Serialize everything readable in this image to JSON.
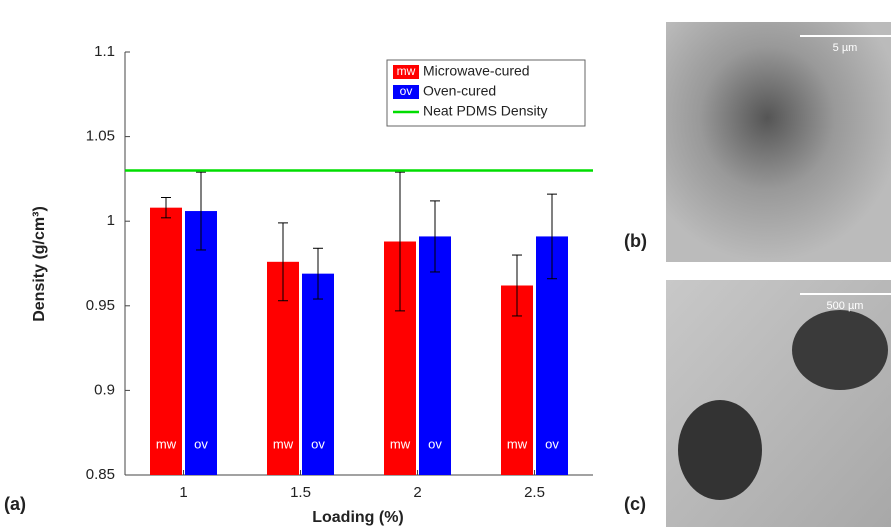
{
  "chart_data": {
    "type": "bar",
    "panel_label": "(a)",
    "xlabel": "Loading (%)",
    "ylabel": "Density (g/cm³)",
    "categories": [
      "1",
      "1.5",
      "2",
      "2.5"
    ],
    "series": [
      {
        "name": "Microwave-cured",
        "tag": "mw",
        "color": "#ff0000",
        "values": [
          1.008,
          0.976,
          0.988,
          0.962
        ],
        "errors": [
          0.006,
          0.023,
          0.041,
          0.018
        ]
      },
      {
        "name": "Oven-cured",
        "tag": "ov",
        "color": "#0000ff",
        "values": [
          1.006,
          0.969,
          0.991,
          0.991
        ],
        "errors": [
          0.023,
          0.015,
          0.021,
          0.025
        ]
      }
    ],
    "reference": {
      "name": "Neat PDMS Density",
      "value": 1.03,
      "color": "#00dd00"
    },
    "ylim": [
      0.85,
      1.1
    ],
    "yticks": [
      0.85,
      0.9,
      0.95,
      1,
      1.05,
      1.1
    ],
    "legend": "top-right"
  },
  "panels": [
    {
      "label": "(b)",
      "scale_bar": "5 µm"
    },
    {
      "label": "(c)",
      "scale_bar": "500 µm"
    }
  ]
}
